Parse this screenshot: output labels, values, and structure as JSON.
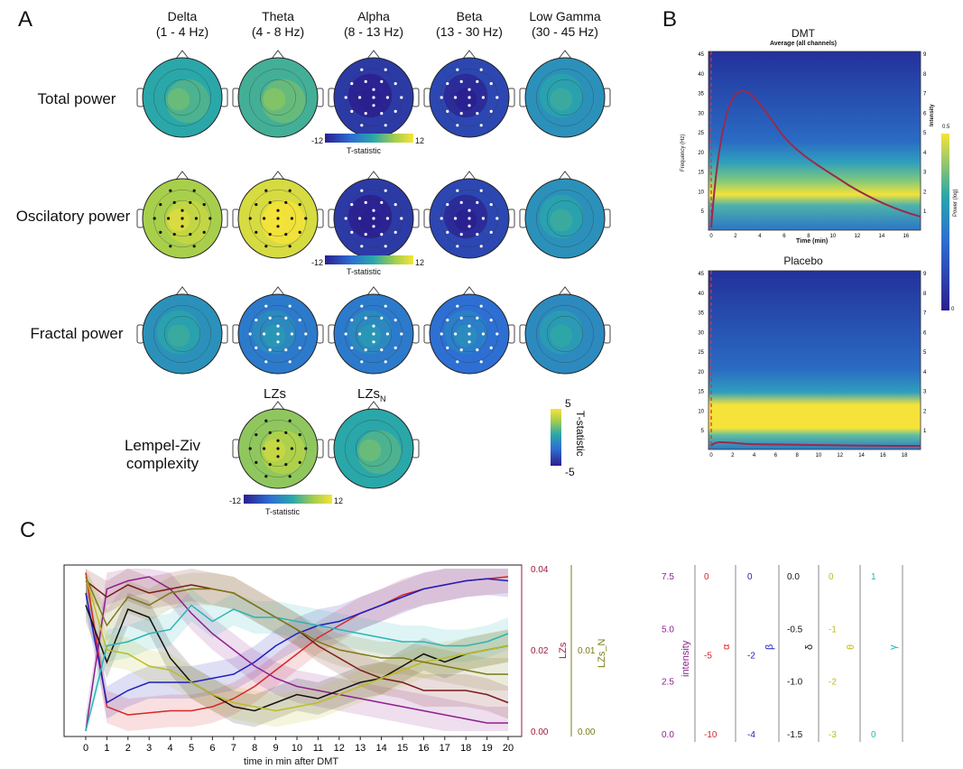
{
  "panel_a": {
    "letter": "A",
    "bands": [
      {
        "name": "Delta",
        "range": "(1 - 4 Hz)"
      },
      {
        "name": "Theta",
        "range": "(4 - 8 Hz)"
      },
      {
        "name": "Alpha",
        "range": "(8 - 13 Hz)"
      },
      {
        "name": "Beta",
        "range": "(13 - 30 Hz)"
      },
      {
        "name": "Low Gamma",
        "range": "(30 - 45 Hz)"
      }
    ],
    "rows": [
      "Total power",
      "Oscilatory power",
      "Fractal power"
    ],
    "lz_row": {
      "label_line1": "Lempel-Ziv",
      "label_line2": "complexity",
      "lzs": "LZs",
      "lzsn_base": "LZs",
      "lzsn_sub": "N"
    },
    "colorbar_a": {
      "min": "-12",
      "max": "12",
      "label": "T-statistic"
    },
    "colorbar_b": {
      "min": "-12",
      "max": "12",
      "label": "T-statistic"
    },
    "colorbar_lz": {
      "min": "-12",
      "max": "12",
      "label": "T-statistic"
    },
    "colorbar_big": {
      "max": "5",
      "min": "-5",
      "label": "T-statistic"
    },
    "colors": {
      "low": "#2b1f8f",
      "mid": "#2aa7a9",
      "high": "#f5e33a"
    },
    "topo_means": [
      [
        0.55,
        0.6,
        0.1,
        0.15,
        0.45
      ],
      [
        0.8,
        0.92,
        0.1,
        0.15,
        0.45
      ],
      [
        0.45,
        0.35,
        0.35,
        0.3,
        0.42
      ]
    ],
    "lz_means": [
      0.75,
      0.55
    ]
  },
  "panel_b": {
    "letter": "B",
    "dmt_title": "DMT",
    "dmt_subtitle": "Average (all channels)",
    "placebo_title": "Placebo",
    "ylabel": "Frequency (Hz)",
    "xlabel": "Time (min)",
    "right_label": "Intensity",
    "power_label": "Power (log)",
    "power_max": "0.5",
    "power_min": "0",
    "freq_ticks": [
      "45",
      "40",
      "35",
      "30",
      "25",
      "20",
      "15",
      "10",
      "5"
    ],
    "intensity_ticks": [
      "9",
      "8",
      "7",
      "6",
      "5",
      "4",
      "3",
      "2",
      "1"
    ],
    "time_ticks": [
      "0",
      "2",
      "4",
      "6",
      "8",
      "10",
      "12",
      "14",
      "16"
    ],
    "time_ticks_placebo": [
      "0",
      "2",
      "4",
      "6",
      "8",
      "10",
      "12",
      "14",
      "16",
      "18"
    ]
  },
  "panel_c": {
    "letter": "C",
    "chart_data": {
      "type": "line",
      "xlabel": "time in min after DMT",
      "x": [
        0,
        1,
        2,
        3,
        4,
        5,
        6,
        7,
        8,
        9,
        10,
        11,
        12,
        13,
        14,
        15,
        16,
        17,
        18,
        19,
        20
      ],
      "x_tick_labels": [
        "0",
        "1",
        "2",
        "3",
        "4",
        "5",
        "6",
        "7",
        "8",
        "9",
        "10",
        "11",
        "12",
        "13",
        "14",
        "15",
        "16",
        "17",
        "18",
        "19",
        "20"
      ],
      "lzs_axis": {
        "label": "LZs",
        "ticks": [
          "0.04",
          "0.02",
          "0.00"
        ],
        "color": "#9b1b3a"
      },
      "lzsn_axis": {
        "label": "LZs_N",
        "ticks": [
          "0.01",
          "0.00"
        ],
        "color": "#7a7a18"
      },
      "series": [
        {
          "color": "#d62728",
          "values": [
            0.039,
            0.006,
            0.004,
            0.0045,
            0.005,
            0.005,
            0.006,
            0.008,
            0.011,
            0.015,
            0.019,
            0.023,
            0.026,
            0.029,
            0.031,
            0.0335,
            0.035,
            0.036,
            0.037,
            0.0375,
            0.038
          ]
        },
        {
          "color": "#1f1fbf",
          "values": [
            0.034,
            0.007,
            0.01,
            0.012,
            0.012,
            0.012,
            0.013,
            0.014,
            0.017,
            0.021,
            0.024,
            0.026,
            0.027,
            0.029,
            0.031,
            0.033,
            0.035,
            0.036,
            0.037,
            0.0375,
            0.037
          ]
        },
        {
          "color": "#8e1f8e",
          "values": [
            0.0,
            0.035,
            0.037,
            0.038,
            0.035,
            0.029,
            0.024,
            0.02,
            0.016,
            0.013,
            0.011,
            0.01,
            0.009,
            0.008,
            0.007,
            0.006,
            0.005,
            0.004,
            0.003,
            0.002,
            0.002
          ]
        },
        {
          "color": "#7a1b1b",
          "values": [
            0.037,
            0.033,
            0.036,
            0.034,
            0.035,
            0.036,
            0.035,
            0.034,
            0.031,
            0.028,
            0.025,
            0.021,
            0.018,
            0.015,
            0.013,
            0.012,
            0.01,
            0.01,
            0.01,
            0.009,
            0.007
          ]
        },
        {
          "color": "#111111",
          "values": [
            0.031,
            0.017,
            0.03,
            0.028,
            0.018,
            0.012,
            0.009,
            0.006,
            0.005,
            0.007,
            0.009,
            0.008,
            0.01,
            0.012,
            0.013,
            0.016,
            0.019,
            0.017,
            0.019,
            0.02,
            0.021
          ]
        },
        {
          "color": "#2ab5b5",
          "values": [
            0.0,
            0.021,
            0.022,
            0.024,
            0.025,
            0.031,
            0.027,
            0.03,
            0.028,
            0.028,
            0.027,
            0.026,
            0.025,
            0.024,
            0.023,
            0.022,
            0.022,
            0.021,
            0.021,
            0.022,
            0.024
          ]
        },
        {
          "color": "#bcbd22",
          "values": [
            0.038,
            0.02,
            0.019,
            0.016,
            0.015,
            0.012,
            0.009,
            0.007,
            0.006,
            0.005,
            0.006,
            0.007,
            0.009,
            0.011,
            0.013,
            0.015,
            0.017,
            0.018,
            0.019,
            0.02,
            0.021
          ]
        },
        {
          "color": "#7a7a18",
          "values": [
            0.038,
            0.026,
            0.033,
            0.031,
            0.034,
            0.035,
            0.035,
            0.034,
            0.031,
            0.028,
            0.025,
            0.022,
            0.02,
            0.019,
            0.018,
            0.018,
            0.017,
            0.016,
            0.015,
            0.014,
            0.014
          ]
        }
      ],
      "side_axes": [
        {
          "label": "intensity",
          "color": "#8e1f8e",
          "ticks": [
            "7.5",
            "5.0",
            "2.5",
            "0.0"
          ]
        },
        {
          "label": "α",
          "color": "#d62728",
          "ticks": [
            "0",
            "-5",
            "-10"
          ]
        },
        {
          "label": "β",
          "color": "#1f1fbf",
          "ticks": [
            "0",
            "-2",
            "-4"
          ]
        },
        {
          "label": "δ",
          "color": "#111111",
          "ticks": [
            "0.0",
            "-0.5",
            "-1.0",
            "-1.5"
          ]
        },
        {
          "label": "θ",
          "color": "#bcbd22",
          "ticks": [
            "0",
            "-1",
            "-2",
            "-3"
          ]
        },
        {
          "label": "γ",
          "color": "#2ab5b5",
          "ticks": [
            "1",
            "0"
          ]
        }
      ]
    }
  }
}
